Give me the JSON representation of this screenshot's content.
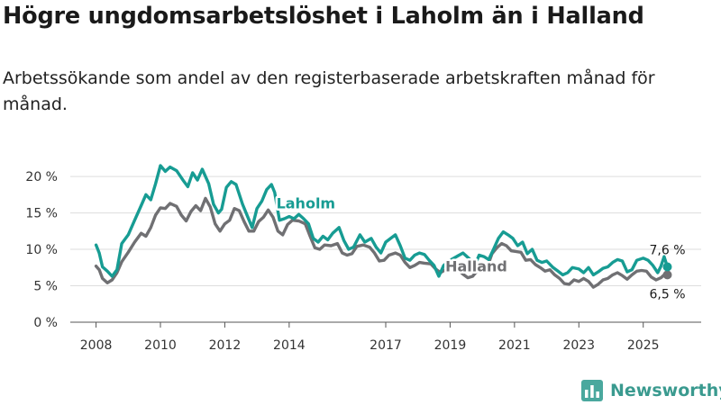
{
  "title": "Högre ungdomsarbetslöshet i Laholm än i Halland",
  "subtitle": "Arbetssökande som andel av den registerbaserade arbetskraften månad för månad.",
  "brand": {
    "name": "Newsworthy",
    "icon": "bar-chart-icon"
  },
  "chart_data": {
    "type": "line",
    "title": "Högre ungdomsarbetslöshet i Laholm än i Halland",
    "xlabel": "",
    "ylabel": "",
    "ylim": [
      0,
      21
    ],
    "xlim": [
      2007.2,
      2026.8
    ],
    "grid": true,
    "legend": "inline labels",
    "y_ticks": [
      0,
      5,
      10,
      15,
      20
    ],
    "y_tick_labels": [
      "0 %",
      "5 %",
      "10 %",
      "15 %",
      "20 %"
    ],
    "x_ticks": [
      2008,
      2010,
      2012,
      2014,
      2017,
      2019,
      2021,
      2023,
      2025
    ],
    "x_tick_labels": [
      "2008",
      "2010",
      "2012",
      "2014",
      "2017",
      "2019",
      "2021",
      "2023",
      "2025"
    ],
    "series": [
      {
        "name": "Laholm",
        "color": "#179c93",
        "end_label": "7,6 %",
        "points": [
          [
            2008.0,
            10.6
          ],
          [
            2008.1,
            9.5
          ],
          [
            2008.2,
            7.6
          ],
          [
            2008.35,
            7.0
          ],
          [
            2008.5,
            6.3
          ],
          [
            2008.65,
            7.2
          ],
          [
            2008.8,
            10.8
          ],
          [
            2009.0,
            12.0
          ],
          [
            2009.2,
            14.0
          ],
          [
            2009.4,
            16.0
          ],
          [
            2009.55,
            17.5
          ],
          [
            2009.7,
            16.8
          ],
          [
            2009.85,
            19.0
          ],
          [
            2010.0,
            21.5
          ],
          [
            2010.15,
            20.7
          ],
          [
            2010.3,
            21.3
          ],
          [
            2010.5,
            20.8
          ],
          [
            2010.7,
            19.5
          ],
          [
            2010.85,
            18.6
          ],
          [
            2011.0,
            20.5
          ],
          [
            2011.15,
            19.5
          ],
          [
            2011.3,
            21.0
          ],
          [
            2011.5,
            19.0
          ],
          [
            2011.65,
            16.2
          ],
          [
            2011.8,
            15.0
          ],
          [
            2011.9,
            15.5
          ],
          [
            2012.05,
            18.5
          ],
          [
            2012.2,
            19.3
          ],
          [
            2012.35,
            18.9
          ],
          [
            2012.55,
            16.2
          ],
          [
            2012.7,
            14.6
          ],
          [
            2012.85,
            13.0
          ],
          [
            2013.0,
            15.6
          ],
          [
            2013.15,
            16.6
          ],
          [
            2013.3,
            18.2
          ],
          [
            2013.45,
            18.9
          ],
          [
            2013.55,
            17.8
          ],
          [
            2013.7,
            14.0
          ],
          [
            2013.85,
            14.2
          ],
          [
            2014.0,
            14.5
          ],
          [
            2014.15,
            14.2
          ],
          [
            2014.3,
            14.8
          ],
          [
            2014.45,
            14.2
          ],
          [
            2014.6,
            13.5
          ],
          [
            2014.75,
            11.5
          ],
          [
            2014.9,
            11.0
          ],
          [
            2015.05,
            11.8
          ],
          [
            2015.2,
            11.3
          ],
          [
            2015.35,
            12.2
          ],
          [
            2015.55,
            13.0
          ],
          [
            2015.7,
            11.2
          ],
          [
            2015.85,
            10.0
          ],
          [
            2016.0,
            10.3
          ],
          [
            2016.2,
            12.0
          ],
          [
            2016.35,
            11.0
          ],
          [
            2016.55,
            11.5
          ],
          [
            2016.7,
            10.3
          ],
          [
            2016.85,
            9.5
          ],
          [
            2017.0,
            11.0
          ],
          [
            2017.15,
            11.5
          ],
          [
            2017.3,
            12.0
          ],
          [
            2017.45,
            10.5
          ],
          [
            2017.6,
            8.8
          ],
          [
            2017.75,
            8.5
          ],
          [
            2017.9,
            9.2
          ],
          [
            2018.05,
            9.5
          ],
          [
            2018.2,
            9.3
          ],
          [
            2018.35,
            8.5
          ],
          [
            2018.5,
            7.8
          ],
          [
            2018.65,
            6.3
          ],
          [
            2018.8,
            7.8
          ],
          [
            2019.0,
            8.5
          ],
          [
            2019.2,
            9.0
          ],
          [
            2019.4,
            9.5
          ],
          [
            2019.6,
            8.7
          ],
          [
            2019.75,
            7.6
          ],
          [
            2019.9,
            9.2
          ],
          [
            2020.05,
            9.0
          ],
          [
            2020.2,
            8.6
          ],
          [
            2020.35,
            10.0
          ],
          [
            2020.5,
            11.5
          ],
          [
            2020.65,
            12.4
          ],
          [
            2020.8,
            12.0
          ],
          [
            2020.95,
            11.5
          ],
          [
            2021.1,
            10.5
          ],
          [
            2021.25,
            11.0
          ],
          [
            2021.4,
            9.4
          ],
          [
            2021.55,
            10.0
          ],
          [
            2021.7,
            8.5
          ],
          [
            2021.85,
            8.2
          ],
          [
            2022.0,
            8.4
          ],
          [
            2022.2,
            7.5
          ],
          [
            2022.35,
            7.0
          ],
          [
            2022.5,
            6.5
          ],
          [
            2022.65,
            6.8
          ],
          [
            2022.8,
            7.5
          ],
          [
            2023.0,
            7.3
          ],
          [
            2023.15,
            6.8
          ],
          [
            2023.3,
            7.5
          ],
          [
            2023.45,
            6.5
          ],
          [
            2023.6,
            6.9
          ],
          [
            2023.75,
            7.4
          ],
          [
            2023.9,
            7.6
          ],
          [
            2024.05,
            8.2
          ],
          [
            2024.2,
            8.6
          ],
          [
            2024.35,
            8.4
          ],
          [
            2024.5,
            6.9
          ],
          [
            2024.65,
            7.2
          ],
          [
            2024.8,
            8.5
          ],
          [
            2025.0,
            8.8
          ],
          [
            2025.15,
            8.5
          ],
          [
            2025.3,
            7.8
          ],
          [
            2025.45,
            6.8
          ],
          [
            2025.55,
            7.7
          ],
          [
            2025.65,
            9.0
          ],
          [
            2025.75,
            7.6
          ]
        ]
      },
      {
        "name": "Halland",
        "color": "#707073",
        "end_label": "6,5 %",
        "points": [
          [
            2008.0,
            7.7
          ],
          [
            2008.1,
            7.2
          ],
          [
            2008.2,
            6.0
          ],
          [
            2008.35,
            5.4
          ],
          [
            2008.5,
            5.8
          ],
          [
            2008.65,
            6.8
          ],
          [
            2008.8,
            8.3
          ],
          [
            2009.0,
            9.6
          ],
          [
            2009.2,
            11.0
          ],
          [
            2009.4,
            12.2
          ],
          [
            2009.55,
            11.8
          ],
          [
            2009.7,
            13.0
          ],
          [
            2009.85,
            14.7
          ],
          [
            2010.0,
            15.7
          ],
          [
            2010.15,
            15.6
          ],
          [
            2010.3,
            16.3
          ],
          [
            2010.5,
            15.9
          ],
          [
            2010.65,
            14.7
          ],
          [
            2010.8,
            13.9
          ],
          [
            2010.95,
            15.2
          ],
          [
            2011.1,
            16.0
          ],
          [
            2011.25,
            15.3
          ],
          [
            2011.4,
            17.0
          ],
          [
            2011.55,
            15.8
          ],
          [
            2011.7,
            13.5
          ],
          [
            2011.85,
            12.5
          ],
          [
            2012.0,
            13.5
          ],
          [
            2012.15,
            14.0
          ],
          [
            2012.3,
            15.6
          ],
          [
            2012.45,
            15.3
          ],
          [
            2012.6,
            13.8
          ],
          [
            2012.75,
            12.5
          ],
          [
            2012.9,
            12.5
          ],
          [
            2013.05,
            13.8
          ],
          [
            2013.2,
            14.4
          ],
          [
            2013.35,
            15.4
          ],
          [
            2013.5,
            14.4
          ],
          [
            2013.65,
            12.5
          ],
          [
            2013.8,
            12.0
          ],
          [
            2013.95,
            13.4
          ],
          [
            2014.1,
            14.0
          ],
          [
            2014.3,
            13.9
          ],
          [
            2014.5,
            13.5
          ],
          [
            2014.65,
            11.8
          ],
          [
            2014.8,
            10.2
          ],
          [
            2014.95,
            10.0
          ],
          [
            2015.1,
            10.6
          ],
          [
            2015.3,
            10.5
          ],
          [
            2015.5,
            10.8
          ],
          [
            2015.65,
            9.5
          ],
          [
            2015.8,
            9.2
          ],
          [
            2015.95,
            9.4
          ],
          [
            2016.1,
            10.4
          ],
          [
            2016.3,
            10.6
          ],
          [
            2016.5,
            10.3
          ],
          [
            2016.65,
            9.5
          ],
          [
            2016.8,
            8.4
          ],
          [
            2016.95,
            8.5
          ],
          [
            2017.1,
            9.2
          ],
          [
            2017.3,
            9.5
          ],
          [
            2017.45,
            9.2
          ],
          [
            2017.6,
            8.2
          ],
          [
            2017.75,
            7.5
          ],
          [
            2017.9,
            7.8
          ],
          [
            2018.05,
            8.2
          ],
          [
            2018.2,
            8.1
          ],
          [
            2018.4,
            8.0
          ],
          [
            2018.55,
            7.3
          ],
          [
            2018.7,
            6.8
          ],
          [
            2018.85,
            7.2
          ],
          [
            2019.0,
            7.8
          ],
          [
            2019.2,
            7.4
          ],
          [
            2019.4,
            6.6
          ],
          [
            2019.55,
            6.1
          ],
          [
            2019.7,
            6.3
          ],
          [
            2019.85,
            7.1
          ],
          [
            2020.0,
            7.0
          ],
          [
            2020.15,
            7.5
          ],
          [
            2020.3,
            9.4
          ],
          [
            2020.45,
            10.2
          ],
          [
            2020.6,
            10.8
          ],
          [
            2020.75,
            10.5
          ],
          [
            2020.9,
            9.8
          ],
          [
            2021.05,
            9.7
          ],
          [
            2021.2,
            9.6
          ],
          [
            2021.35,
            8.5
          ],
          [
            2021.5,
            8.6
          ],
          [
            2021.65,
            7.9
          ],
          [
            2021.8,
            7.5
          ],
          [
            2021.95,
            7.0
          ],
          [
            2022.1,
            7.2
          ],
          [
            2022.25,
            6.5
          ],
          [
            2022.4,
            6.0
          ],
          [
            2022.55,
            5.3
          ],
          [
            2022.7,
            5.2
          ],
          [
            2022.85,
            5.8
          ],
          [
            2023.0,
            5.6
          ],
          [
            2023.15,
            6.0
          ],
          [
            2023.3,
            5.6
          ],
          [
            2023.45,
            4.8
          ],
          [
            2023.6,
            5.2
          ],
          [
            2023.75,
            5.8
          ],
          [
            2023.9,
            6.0
          ],
          [
            2024.05,
            6.5
          ],
          [
            2024.2,
            6.8
          ],
          [
            2024.35,
            6.4
          ],
          [
            2024.5,
            5.9
          ],
          [
            2024.65,
            6.5
          ],
          [
            2024.8,
            7.0
          ],
          [
            2024.95,
            7.1
          ],
          [
            2025.1,
            7.0
          ],
          [
            2025.25,
            6.2
          ],
          [
            2025.4,
            5.8
          ],
          [
            2025.55,
            6.1
          ],
          [
            2025.65,
            6.5
          ],
          [
            2025.75,
            6.5
          ]
        ]
      }
    ]
  }
}
